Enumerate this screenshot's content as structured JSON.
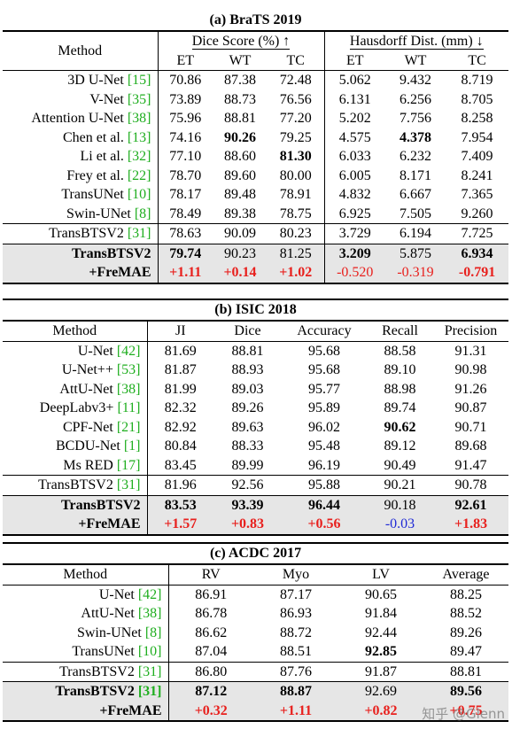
{
  "brats": {
    "caption": "(a) BraTS 2019",
    "method_header": "Method",
    "dice_header": "Dice Score (%) ↑",
    "hd_header": "Hausdorff Dist. (mm) ↓",
    "sub_headers": [
      "ET",
      "WT",
      "TC",
      "ET",
      "WT",
      "TC"
    ],
    "rows": [
      {
        "name": "3D U-Net ",
        "ref": "[15]",
        "vals": [
          "70.86",
          "87.38",
          "72.48",
          "5.062",
          "9.432",
          "8.719"
        ]
      },
      {
        "name": "V-Net ",
        "ref": "[35]",
        "vals": [
          "73.89",
          "88.73",
          "76.56",
          "6.131",
          "6.256",
          "8.705"
        ]
      },
      {
        "name": "Attention U-Net ",
        "ref": "[38]",
        "vals": [
          "75.96",
          "88.81",
          "77.20",
          "5.202",
          "7.756",
          "8.258"
        ]
      },
      {
        "name": "Chen et al. ",
        "ref": "[13]",
        "vals": [
          "74.16",
          "90.26",
          "79.25",
          "4.575",
          "4.378",
          "7.954"
        ]
      },
      {
        "name": "Li et al. ",
        "ref": "[32]",
        "vals": [
          "77.10",
          "88.60",
          "81.30",
          "6.033",
          "6.232",
          "7.409"
        ]
      },
      {
        "name": "Frey et al. ",
        "ref": "[22]",
        "vals": [
          "78.70",
          "89.60",
          "80.00",
          "6.005",
          "8.171",
          "8.241"
        ]
      },
      {
        "name": "TransUNet ",
        "ref": "[10]",
        "vals": [
          "78.17",
          "89.48",
          "78.91",
          "4.832",
          "6.667",
          "7.365"
        ]
      },
      {
        "name": "Swin-UNet ",
        "ref": "[8]",
        "vals": [
          "78.49",
          "89.38",
          "78.75",
          "6.925",
          "7.505",
          "9.260"
        ]
      }
    ],
    "baseline": {
      "name": "TransBTSV2 ",
      "ref": "[31]",
      "vals": [
        "78.63",
        "90.09",
        "80.23",
        "3.729",
        "6.194",
        "7.725"
      ]
    },
    "ours": {
      "name": "TransBTSV2",
      "vals": [
        "79.74",
        "90.23",
        "81.25",
        "3.209",
        "5.875",
        "6.934"
      ]
    },
    "delta": {
      "name": "+FreMAE",
      "vals": [
        "+1.11",
        "+0.14",
        "+1.02",
        "-0.520",
        "-0.319",
        "-0.791"
      ]
    }
  },
  "isic": {
    "caption": "(b) ISIC 2018",
    "headers": [
      "Method",
      "JI",
      "Dice",
      "Accuracy",
      "Recall",
      "Precision"
    ],
    "rows": [
      {
        "name": "U-Net ",
        "ref": "[42]",
        "vals": [
          "81.69",
          "88.81",
          "95.68",
          "88.58",
          "91.31"
        ]
      },
      {
        "name": "U-Net++ ",
        "ref": "[53]",
        "vals": [
          "81.87",
          "88.93",
          "95.68",
          "89.10",
          "90.98"
        ]
      },
      {
        "name": "AttU-Net ",
        "ref": "[38]",
        "vals": [
          "81.99",
          "89.03",
          "95.77",
          "88.98",
          "91.26"
        ]
      },
      {
        "name": "DeepLabv3+ ",
        "ref": "[11]",
        "vals": [
          "82.32",
          "89.26",
          "95.89",
          "89.74",
          "90.87"
        ]
      },
      {
        "name": "CPF-Net ",
        "ref": "[21]",
        "vals": [
          "82.92",
          "89.63",
          "96.02",
          "90.62",
          "90.71"
        ]
      },
      {
        "name": "BCDU-Net ",
        "ref": "[1]",
        "vals": [
          "80.84",
          "88.33",
          "95.48",
          "89.12",
          "89.68"
        ]
      },
      {
        "name": "Ms RED ",
        "ref": "[17]",
        "vals": [
          "83.45",
          "89.99",
          "96.19",
          "90.49",
          "91.47"
        ]
      }
    ],
    "baseline": {
      "name": "TransBTSV2 ",
      "ref": "[31]",
      "vals": [
        "81.96",
        "92.56",
        "95.88",
        "90.21",
        "90.78"
      ]
    },
    "ours": {
      "name": "TransBTSV2",
      "vals": [
        "83.53",
        "93.39",
        "96.44",
        "90.18",
        "92.61"
      ]
    },
    "delta": {
      "name": "+FreMAE",
      "vals": [
        "+1.57",
        "+0.83",
        "+0.56",
        "-0.03",
        "+1.83"
      ]
    }
  },
  "acdc": {
    "caption": "(c) ACDC 2017",
    "headers": [
      "Method",
      "RV",
      "Myo",
      "LV",
      "Average"
    ],
    "rows": [
      {
        "name": "U-Net ",
        "ref": "[42]",
        "vals": [
          "86.91",
          "87.17",
          "90.65",
          "88.25"
        ]
      },
      {
        "name": "AttU-Net ",
        "ref": "[38]",
        "vals": [
          "86.78",
          "86.93",
          "91.84",
          "88.52"
        ]
      },
      {
        "name": "Swin-UNet ",
        "ref": "[8]",
        "vals": [
          "86.62",
          "88.72",
          "92.44",
          "89.26"
        ]
      },
      {
        "name": "TransUNet ",
        "ref": "[10]",
        "vals": [
          "87.04",
          "88.51",
          "92.85",
          "89.47"
        ]
      }
    ],
    "baseline": {
      "name": "TransBTSV2 ",
      "ref": "[31]",
      "vals": [
        "86.80",
        "87.76",
        "91.87",
        "88.81"
      ]
    },
    "ours": {
      "name": "TransBTSV2 ",
      "ref": "[31]",
      "vals": [
        "87.12",
        "88.87",
        "92.69",
        "89.56"
      ]
    },
    "delta": {
      "name": "+FreMAE",
      "vals": [
        "+0.32",
        "+1.11",
        "+0.82",
        "+0.75"
      ]
    }
  },
  "watermark": "知乎 @Glenn",
  "colors": {
    "reference": "#1fae1f",
    "gain": "#e8201d",
    "loss_blue": "#1f2ad6",
    "shade": "#e6e6e6"
  }
}
